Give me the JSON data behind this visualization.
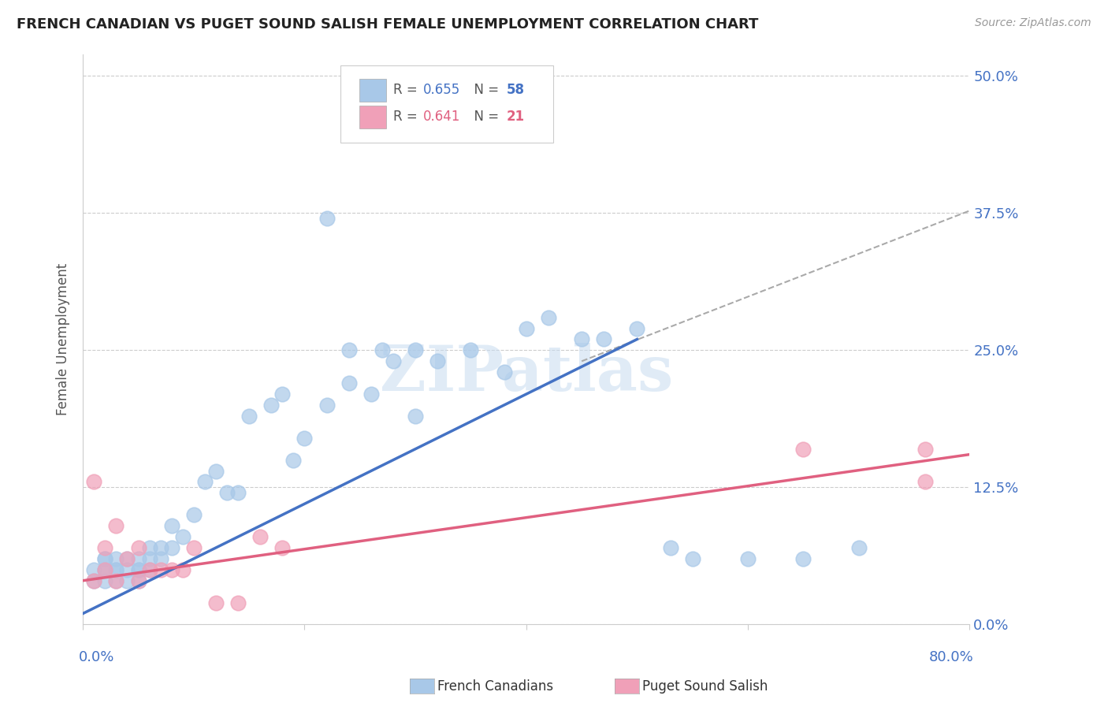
{
  "title": "FRENCH CANADIAN VS PUGET SOUND SALISH FEMALE UNEMPLOYMENT CORRELATION CHART",
  "source": "Source: ZipAtlas.com",
  "ylabel": "Female Unemployment",
  "ytick_labels": [
    "0.0%",
    "12.5%",
    "25.0%",
    "37.5%",
    "50.0%"
  ],
  "ytick_values": [
    0.0,
    0.125,
    0.25,
    0.375,
    0.5
  ],
  "xlim": [
    0.0,
    0.8
  ],
  "ylim": [
    0.0,
    0.52
  ],
  "legend_label1": "French Canadians",
  "legend_label2": "Puget Sound Salish",
  "color_blue": "#A8C8E8",
  "color_pink": "#F0A0B8",
  "line_blue": "#4472C4",
  "line_pink": "#E06080",
  "line_dashed_color": "#AAAAAA",
  "watermark_color": "#D8E8F0",
  "blue_scatter_x": [
    0.01,
    0.01,
    0.02,
    0.02,
    0.02,
    0.02,
    0.02,
    0.03,
    0.03,
    0.03,
    0.03,
    0.04,
    0.04,
    0.04,
    0.05,
    0.05,
    0.05,
    0.05,
    0.06,
    0.06,
    0.06,
    0.07,
    0.07,
    0.08,
    0.08,
    0.09,
    0.1,
    0.11,
    0.12,
    0.13,
    0.14,
    0.15,
    0.17,
    0.18,
    0.19,
    0.2,
    0.22,
    0.24,
    0.26,
    0.28,
    0.3,
    0.32,
    0.35,
    0.38,
    0.4,
    0.42,
    0.45,
    0.47,
    0.5,
    0.53,
    0.55,
    0.6,
    0.65,
    0.7,
    0.22,
    0.24,
    0.27,
    0.3
  ],
  "blue_scatter_y": [
    0.04,
    0.05,
    0.04,
    0.05,
    0.05,
    0.06,
    0.06,
    0.04,
    0.05,
    0.05,
    0.06,
    0.04,
    0.05,
    0.06,
    0.04,
    0.05,
    0.05,
    0.06,
    0.05,
    0.06,
    0.07,
    0.06,
    0.07,
    0.07,
    0.09,
    0.08,
    0.1,
    0.13,
    0.14,
    0.12,
    0.12,
    0.19,
    0.2,
    0.21,
    0.15,
    0.17,
    0.2,
    0.22,
    0.21,
    0.24,
    0.25,
    0.24,
    0.25,
    0.23,
    0.27,
    0.28,
    0.26,
    0.26,
    0.27,
    0.07,
    0.06,
    0.06,
    0.06,
    0.07,
    0.37,
    0.25,
    0.25,
    0.19
  ],
  "pink_scatter_x": [
    0.01,
    0.01,
    0.02,
    0.02,
    0.03,
    0.03,
    0.04,
    0.05,
    0.05,
    0.06,
    0.07,
    0.08,
    0.09,
    0.1,
    0.12,
    0.14,
    0.16,
    0.18,
    0.65,
    0.76,
    0.76
  ],
  "pink_scatter_y": [
    0.04,
    0.13,
    0.05,
    0.07,
    0.04,
    0.09,
    0.06,
    0.04,
    0.07,
    0.05,
    0.05,
    0.05,
    0.05,
    0.07,
    0.02,
    0.02,
    0.08,
    0.07,
    0.16,
    0.16,
    0.13
  ],
  "blue_line_x": [
    0.0,
    0.5
  ],
  "blue_line_y": [
    0.01,
    0.26
  ],
  "pink_line_x": [
    0.0,
    0.8
  ],
  "pink_line_y": [
    0.04,
    0.155
  ],
  "dashed_line_x": [
    0.45,
    0.82
  ],
  "dashed_line_y": [
    0.24,
    0.385
  ]
}
